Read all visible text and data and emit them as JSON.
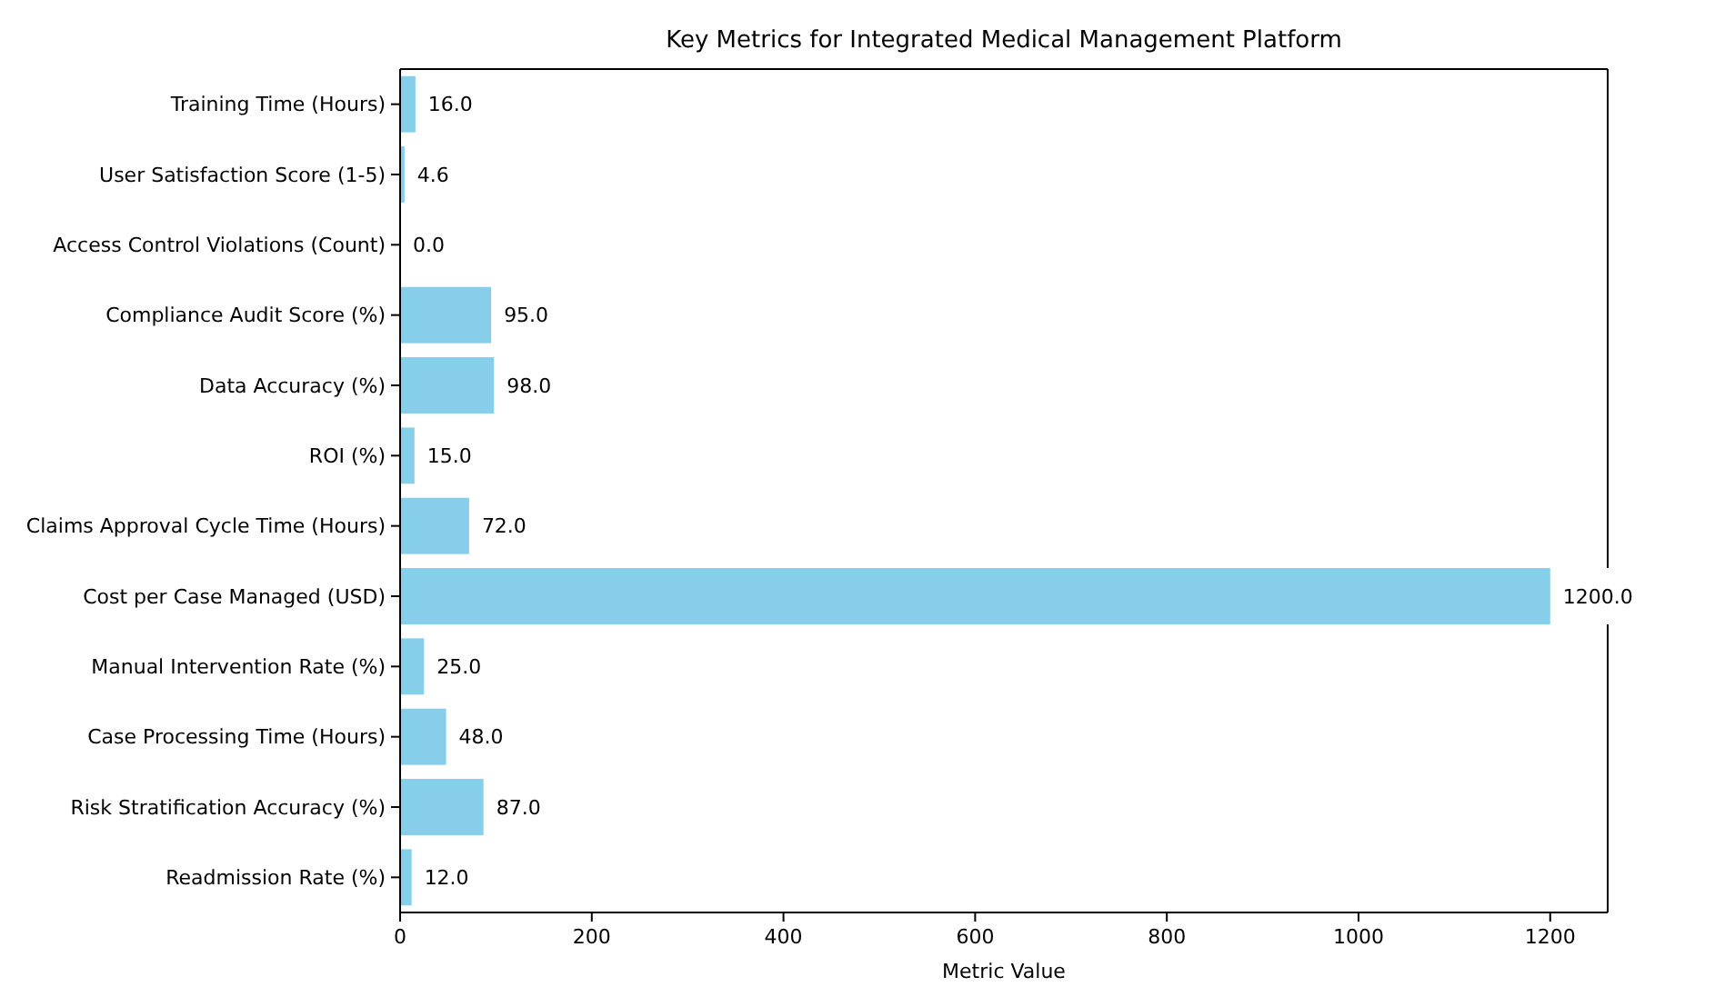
{
  "chart_data": {
    "type": "bar",
    "orientation": "horizontal",
    "title": "Key Metrics for Integrated Medical Management Platform",
    "xlabel": "Metric Value",
    "categories": [
      "Training Time (Hours)",
      "User Satisfaction Score (1-5)",
      "Access Control Violations (Count)",
      "Compliance Audit Score (%)",
      "Data Accuracy (%)",
      "ROI (%)",
      "Claims Approval Cycle Time (Hours)",
      "Cost per Case Managed (USD)",
      "Manual Intervention Rate (%)",
      "Case Processing Time (Hours)",
      "Risk Stratification Accuracy (%)",
      "Readmission Rate (%)"
    ],
    "values": [
      16,
      4.6,
      0,
      95,
      98,
      15,
      72,
      1200,
      25,
      48,
      87,
      12
    ],
    "value_labels": [
      "16.0",
      "4.6",
      "0.0",
      "95.0",
      "98.0",
      "15.0",
      "72.0",
      "1200.0",
      "25.0",
      "48.0",
      "87.0",
      "12.0"
    ],
    "color": "#87ceeb",
    "xlim": [
      0,
      1260
    ],
    "xticks": [
      0,
      200,
      400,
      600,
      800,
      1000,
      1200
    ]
  }
}
